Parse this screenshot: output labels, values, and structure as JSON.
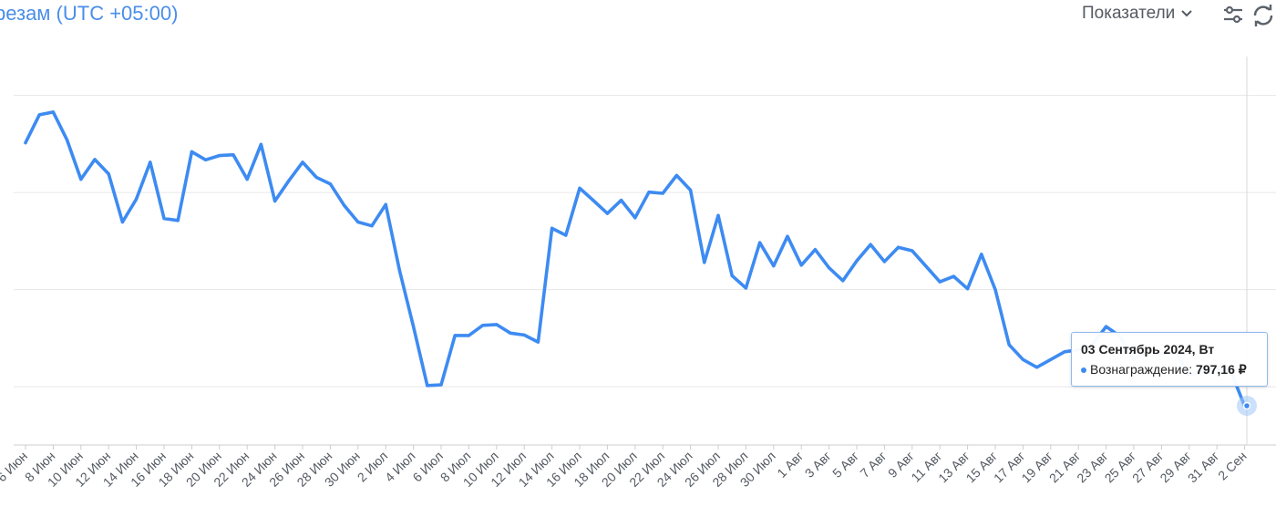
{
  "header": {
    "title": "резам (UTC +05:00)",
    "metrics_label": "Показатели"
  },
  "colors": {
    "accent": "#4a8ee9",
    "line": "#3d8bf2",
    "grid": "#e6e6e6"
  },
  "tooltip": {
    "date": "03 Сентябрь 2024, Вт",
    "series_label": "Вознаграждение",
    "value": "797,16 ₽"
  },
  "chart_data": {
    "type": "line",
    "x_tick_labels": [
      "6 Июн",
      "8 Июн",
      "10 Июн",
      "12 Июн",
      "14 Июн",
      "16 Июн",
      "18 Июн",
      "20 Июн",
      "22 Июн",
      "24 Июн",
      "26 Июн",
      "28 Июн",
      "30 Июн",
      "2 Июл",
      "4 Июл",
      "6 Июл",
      "8 Июл",
      "10 Июл",
      "12 Июл",
      "14 Июл",
      "16 Июл",
      "18 Июл",
      "20 Июл",
      "22 Июл",
      "24 Июл",
      "26 Июл",
      "28 Июл",
      "30 Июл",
      "1 Авг",
      "3 Авг",
      "5 Авг",
      "7 Авг",
      "9 Авг",
      "11 Авг",
      "13 Авг",
      "15 Авг",
      "17 Авг",
      "19 Авг",
      "21 Авг",
      "23 Авг",
      "25 Авг",
      "27 Авг",
      "29 Авг",
      "31 Авг",
      "2 Сен"
    ],
    "series": [
      {
        "values": [
          0.778,
          0.85,
          0.857,
          0.785,
          0.684,
          0.735,
          0.698,
          0.574,
          0.633,
          0.728,
          0.583,
          0.578,
          0.755,
          0.734,
          0.745,
          0.747,
          0.684,
          0.774,
          0.628,
          0.68,
          0.728,
          0.689,
          0.672,
          0.617,
          0.574,
          0.564,
          0.619,
          0.449,
          0.305,
          0.153,
          0.155,
          0.282,
          0.282,
          0.308,
          0.31,
          0.288,
          0.283,
          0.265,
          0.558,
          0.54,
          0.661,
          0.629,
          0.596,
          0.63,
          0.585,
          0.651,
          0.648,
          0.694,
          0.656,
          0.47,
          0.591,
          0.436,
          0.404,
          0.521,
          0.461,
          0.537,
          0.463,
          0.503,
          0.456,
          0.423,
          0.474,
          0.516,
          0.472,
          0.509,
          0.5,
          0.46,
          0.42,
          0.434,
          0.402,
          0.491,
          0.4,
          0.258,
          0.22,
          0.2,
          0.22,
          0.24,
          0.245,
          0.258,
          0.305,
          0.28,
          0.22,
          0.245,
          0.235,
          0.24,
          0.18,
          0.19,
          0.2,
          0.19,
          0.1
        ]
      }
    ],
    "ylim": [
      0,
      1
    ],
    "grid": true,
    "legend": "none"
  }
}
